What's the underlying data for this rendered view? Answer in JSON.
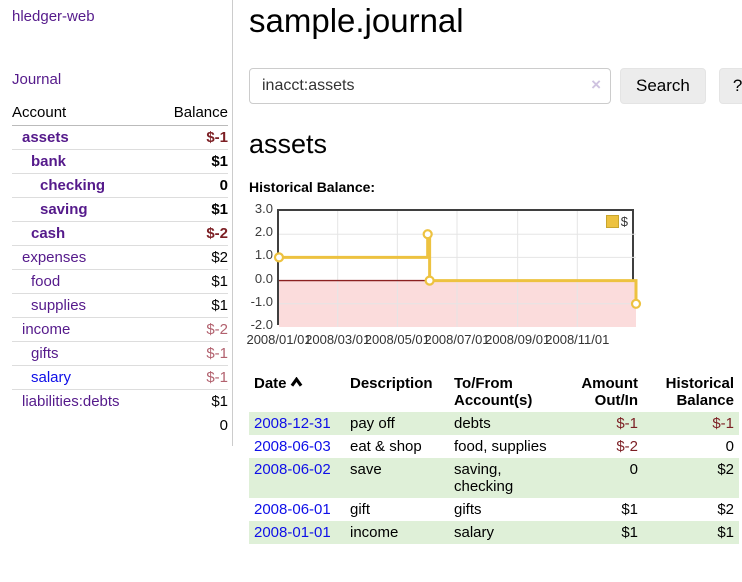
{
  "colors": {
    "link_visited": "#551a8b",
    "link_unvisited": "#0f0fe8",
    "negative_strong": "#7c1f24",
    "negative_muted": "#b2616e",
    "row_stripe_green": "#dff0d8",
    "series_yellow": "#edc240",
    "negative_region_pink": "#fbdcdc",
    "zero_line_red": "#8b2020",
    "plot_border": "#3f3f3f",
    "gridline": "#e5e5e5"
  },
  "app": {
    "brand": "hledger-web",
    "nav_journal": "Journal"
  },
  "sidebar": {
    "accounts_header": {
      "account": "Account",
      "balance": "Balance"
    },
    "accounts": [
      {
        "name": "assets",
        "balance": "$-1",
        "depth": 1,
        "bold": true,
        "name_color": "purple",
        "balance_color": "negstrong"
      },
      {
        "name": "bank",
        "balance": "$1",
        "depth": 2,
        "bold": true,
        "name_color": "purple",
        "balance_color": "pos"
      },
      {
        "name": "checking",
        "balance": "0",
        "depth": 3,
        "bold": true,
        "name_color": "purple",
        "balance_color": "pos"
      },
      {
        "name": "saving",
        "balance": "$1",
        "depth": 3,
        "bold": true,
        "name_color": "purple",
        "balance_color": "pos"
      },
      {
        "name": "cash",
        "balance": "$-2",
        "depth": 2,
        "bold": true,
        "name_color": "purple",
        "balance_color": "negstrong"
      },
      {
        "name": "expenses",
        "balance": "$2",
        "depth": 1,
        "bold": false,
        "name_color": "purple",
        "balance_color": "pos"
      },
      {
        "name": "food",
        "balance": "$1",
        "depth": 2,
        "bold": false,
        "name_color": "purple",
        "balance_color": "pos"
      },
      {
        "name": "supplies",
        "balance": "$1",
        "depth": 2,
        "bold": false,
        "name_color": "purple",
        "balance_color": "pos"
      },
      {
        "name": "income",
        "balance": "$-2",
        "depth": 1,
        "bold": false,
        "name_color": "purple",
        "balance_color": "negmuted"
      },
      {
        "name": "gifts",
        "balance": "$-1",
        "depth": 2,
        "bold": false,
        "name_color": "purple",
        "balance_color": "negmuted"
      },
      {
        "name": "salary",
        "balance": "$-1",
        "depth": 2,
        "bold": false,
        "name_color": "blue",
        "balance_color": "negmuted"
      },
      {
        "name": "liabilities:debts",
        "balance": "$1",
        "depth": 1,
        "bold": false,
        "name_color": "purple",
        "balance_color": "pos"
      }
    ],
    "total": "0"
  },
  "header": {
    "title": "sample.journal"
  },
  "search": {
    "value": "inacct:assets",
    "clear_icon": "×",
    "button_label": "Search",
    "help_label": "?"
  },
  "account_page": {
    "title": "assets",
    "chart_label": "Historical Balance:"
  },
  "chart_data": {
    "type": "line",
    "title": "Historical Balance:",
    "x_range": [
      "2008-01-01",
      "2008-12-31"
    ],
    "ylim": [
      -2,
      3
    ],
    "grid": true,
    "legend_position": "top-right",
    "series": [
      {
        "name": "$",
        "color": "#edc240",
        "step": true,
        "points": [
          [
            "2008-01-01",
            1
          ],
          [
            "2008-06-01",
            2
          ],
          [
            "2008-06-03",
            0
          ],
          [
            "2008-12-31",
            -1
          ]
        ]
      }
    ],
    "yticks": [
      {
        "v": 3,
        "label": "3.0"
      },
      {
        "v": 2,
        "label": "2.0"
      },
      {
        "v": 1,
        "label": "1.0"
      },
      {
        "v": 0,
        "label": "0.0"
      },
      {
        "v": -1,
        "label": "-1.0"
      },
      {
        "v": -2,
        "label": "-2.0"
      }
    ],
    "xticks": [
      {
        "date": "2008-01-01",
        "label": "2008/01/01"
      },
      {
        "date": "2008-03-01",
        "label": "2008/03/01"
      },
      {
        "date": "2008-05-01",
        "label": "2008/05/01"
      },
      {
        "date": "2008-07-01",
        "label": "2008/07/01"
      },
      {
        "date": "2008-09-01",
        "label": "2008/09/01"
      },
      {
        "date": "2008-11-01",
        "label": "2008/11/01"
      }
    ]
  },
  "register": {
    "columns": [
      "Date",
      "Description",
      "To/From\nAccount(s)",
      "Amount\nOut/In",
      "Historical\nBalance"
    ],
    "sort_icon": "chevron-up",
    "rows": [
      {
        "date": "2008-12-31",
        "description": "pay off",
        "accounts": "debts",
        "amount": "$-1",
        "amount_neg": true,
        "balance": "$-1",
        "balance_neg": true
      },
      {
        "date": "2008-06-03",
        "description": "eat & shop",
        "accounts": "food, supplies",
        "amount": "$-2",
        "amount_neg": true,
        "balance": "0",
        "balance_neg": false
      },
      {
        "date": "2008-06-02",
        "description": "save",
        "accounts": "saving, checking",
        "amount": "0",
        "amount_neg": false,
        "balance": "$2",
        "balance_neg": false
      },
      {
        "date": "2008-06-01",
        "description": "gift",
        "accounts": "gifts",
        "amount": "$1",
        "amount_neg": false,
        "balance": "$2",
        "balance_neg": false
      },
      {
        "date": "2008-01-01",
        "description": "income",
        "accounts": "salary",
        "amount": "$1",
        "amount_neg": false,
        "balance": "$1",
        "balance_neg": false
      }
    ]
  }
}
